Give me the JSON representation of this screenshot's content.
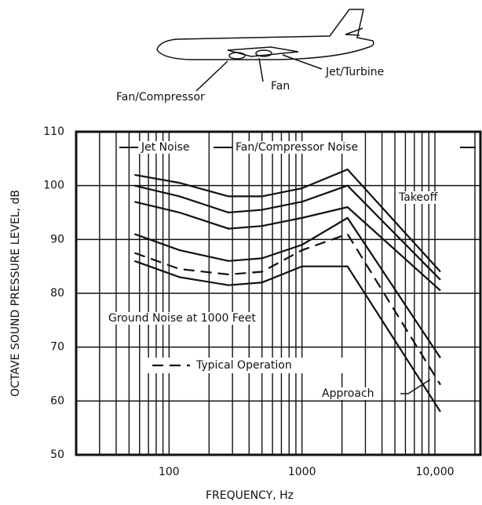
{
  "chart_data": {
    "type": "line",
    "xlabel": "FREQUENCY, Hz",
    "ylabel": "OCTAVE SOUND PRESSURE LEVEL, dB",
    "xscale": "log",
    "x": [
      55,
      120,
      280,
      500,
      1000,
      2200,
      11000
    ],
    "series": [
      {
        "color": "#111111",
        "dash": false,
        "values": [
          102,
          100.5,
          98,
          98,
          99.5,
          103,
          84
        ]
      },
      {
        "color": "#111111",
        "dash": false,
        "values": [
          100,
          98,
          95,
          95.5,
          97,
          100,
          82.5
        ]
      },
      {
        "color": "#111111",
        "dash": false,
        "values": [
          97,
          95,
          92,
          92.5,
          94,
          96,
          80.5
        ]
      },
      {
        "color": "#111111",
        "dash": false,
        "values": [
          91,
          88,
          86,
          86.5,
          89,
          94,
          68
        ]
      },
      {
        "color": "#111111",
        "dash": false,
        "values": [
          86,
          83,
          81.5,
          82,
          85,
          85,
          58
        ]
      },
      {
        "name": "Typical Operation",
        "color": "#111111",
        "dash": true,
        "values": [
          87.5,
          84.5,
          83.5,
          84,
          88,
          91,
          63
        ]
      }
    ],
    "xlim": [
      20,
      22000
    ],
    "ylim": [
      50,
      110
    ],
    "yticks": [
      50,
      60,
      70,
      80,
      90,
      100,
      110
    ],
    "xticks": [
      100,
      1000,
      {
        "value": 10000,
        "label": "10,000"
      }
    ],
    "x_grid_lines": [
      20,
      30,
      40,
      50,
      60,
      70,
      80,
      90,
      200,
      300,
      400,
      500,
      600,
      700,
      800,
      900,
      2000,
      3000,
      4000,
      5000,
      6000,
      7000,
      8000,
      9000,
      20000
    ],
    "grid": true,
    "annotations": [
      "Jet Noise",
      "Fan/Compressor Noise",
      "Takeoff",
      "Ground Noise at 1000 Feet",
      "Approach"
    ],
    "diagram_labels": [
      "Fan/Compressor",
      "Fan",
      "Jet/Turbine"
    ]
  }
}
